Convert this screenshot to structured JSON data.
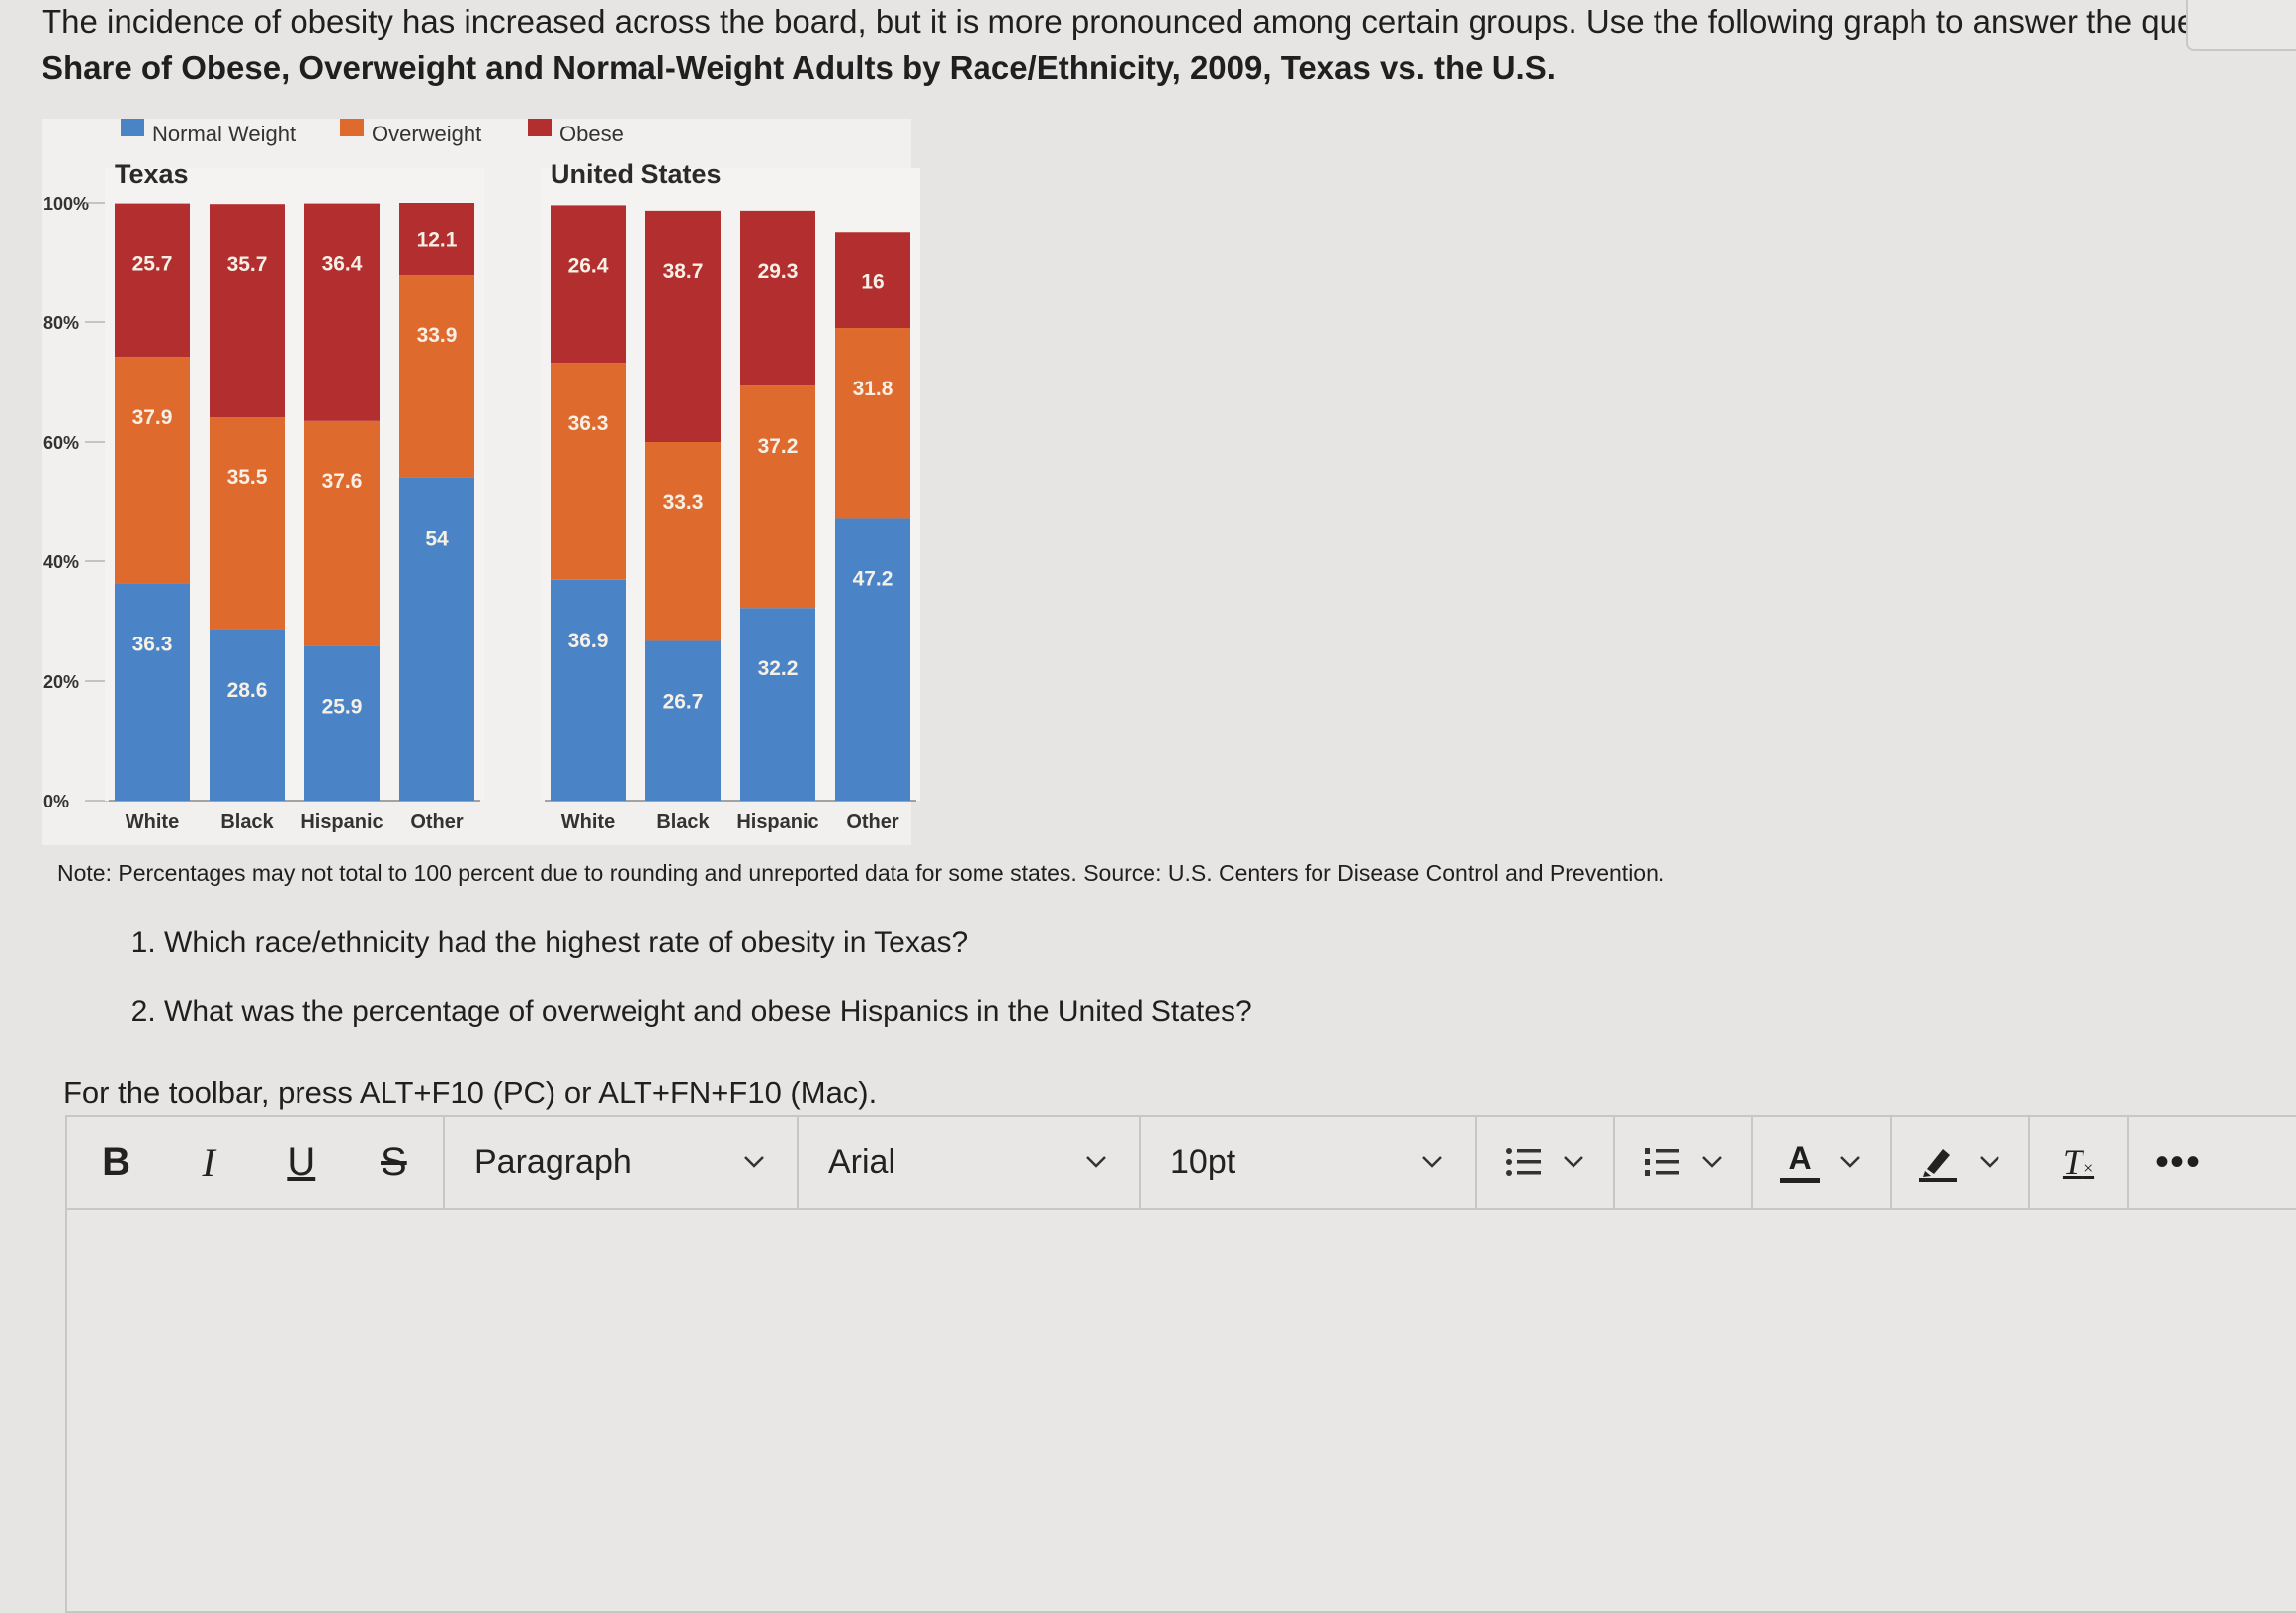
{
  "intro_text": "The incidence of obesity has increased across the board, but it is more pronounced among certain groups. Use the following graph to answer the questions",
  "figure_title": "Share of Obese, Overweight and Normal-Weight Adults by Race/Ethnicity, 2009, Texas vs. the U.S.",
  "note": "Note: Percentages may not total to 100 percent due to rounding and unreported data for some states. Source: U.S. Centers for Disease Control and Prevention.",
  "questions": [
    "Which race/ethnicity had the highest rate of obesity in Texas?",
    "What was the percentage of overweight and obese Hispanics in the United States?"
  ],
  "toolbar_hint": "For the toolbar, press ALT+F10 (PC) or ALT+FN+F10 (Mac).",
  "toolbar": {
    "bold": "B",
    "italic": "I",
    "underline": "U",
    "strike": "S",
    "block_format": "Paragraph",
    "font_family": "Arial",
    "font_size": "10pt",
    "text_color_glyph": "A",
    "clear_format_glyph": "T",
    "more": "•••",
    "icons": [
      "bullet-list-icon",
      "numbered-list-icon",
      "text-color-icon",
      "highlight-icon",
      "clear-format-icon",
      "more-icon"
    ]
  },
  "chart_data": {
    "type": "bar",
    "stacked": true,
    "legend": [
      "Normal Weight",
      "Overweight",
      "Obese"
    ],
    "legend_position": "top",
    "colors": {
      "Normal Weight": "#4a84c6",
      "Overweight": "#df6a2e",
      "Obese": "#b32e2e"
    },
    "yticks": [
      "0%",
      "20%",
      "40%",
      "60%",
      "80%",
      "100%"
    ],
    "ylim": [
      0,
      100
    ],
    "categories": [
      "White",
      "Black",
      "Hispanic",
      "Other"
    ],
    "panels": [
      {
        "title": "Texas",
        "series": [
          {
            "name": "Normal Weight",
            "values": [
              36.3,
              28.6,
              25.9,
              54
            ]
          },
          {
            "name": "Overweight",
            "values": [
              37.9,
              35.5,
              37.6,
              33.9
            ]
          },
          {
            "name": "Obese",
            "values": [
              25.7,
              35.7,
              36.4,
              12.1
            ]
          }
        ]
      },
      {
        "title": "United States",
        "series": [
          {
            "name": "Normal Weight",
            "values": [
              36.9,
              26.7,
              32.2,
              47.2
            ]
          },
          {
            "name": "Overweight",
            "values": [
              36.3,
              33.3,
              37.2,
              31.8
            ]
          },
          {
            "name": "Obese",
            "values": [
              26.4,
              38.7,
              29.3,
              16
            ]
          }
        ]
      }
    ]
  }
}
